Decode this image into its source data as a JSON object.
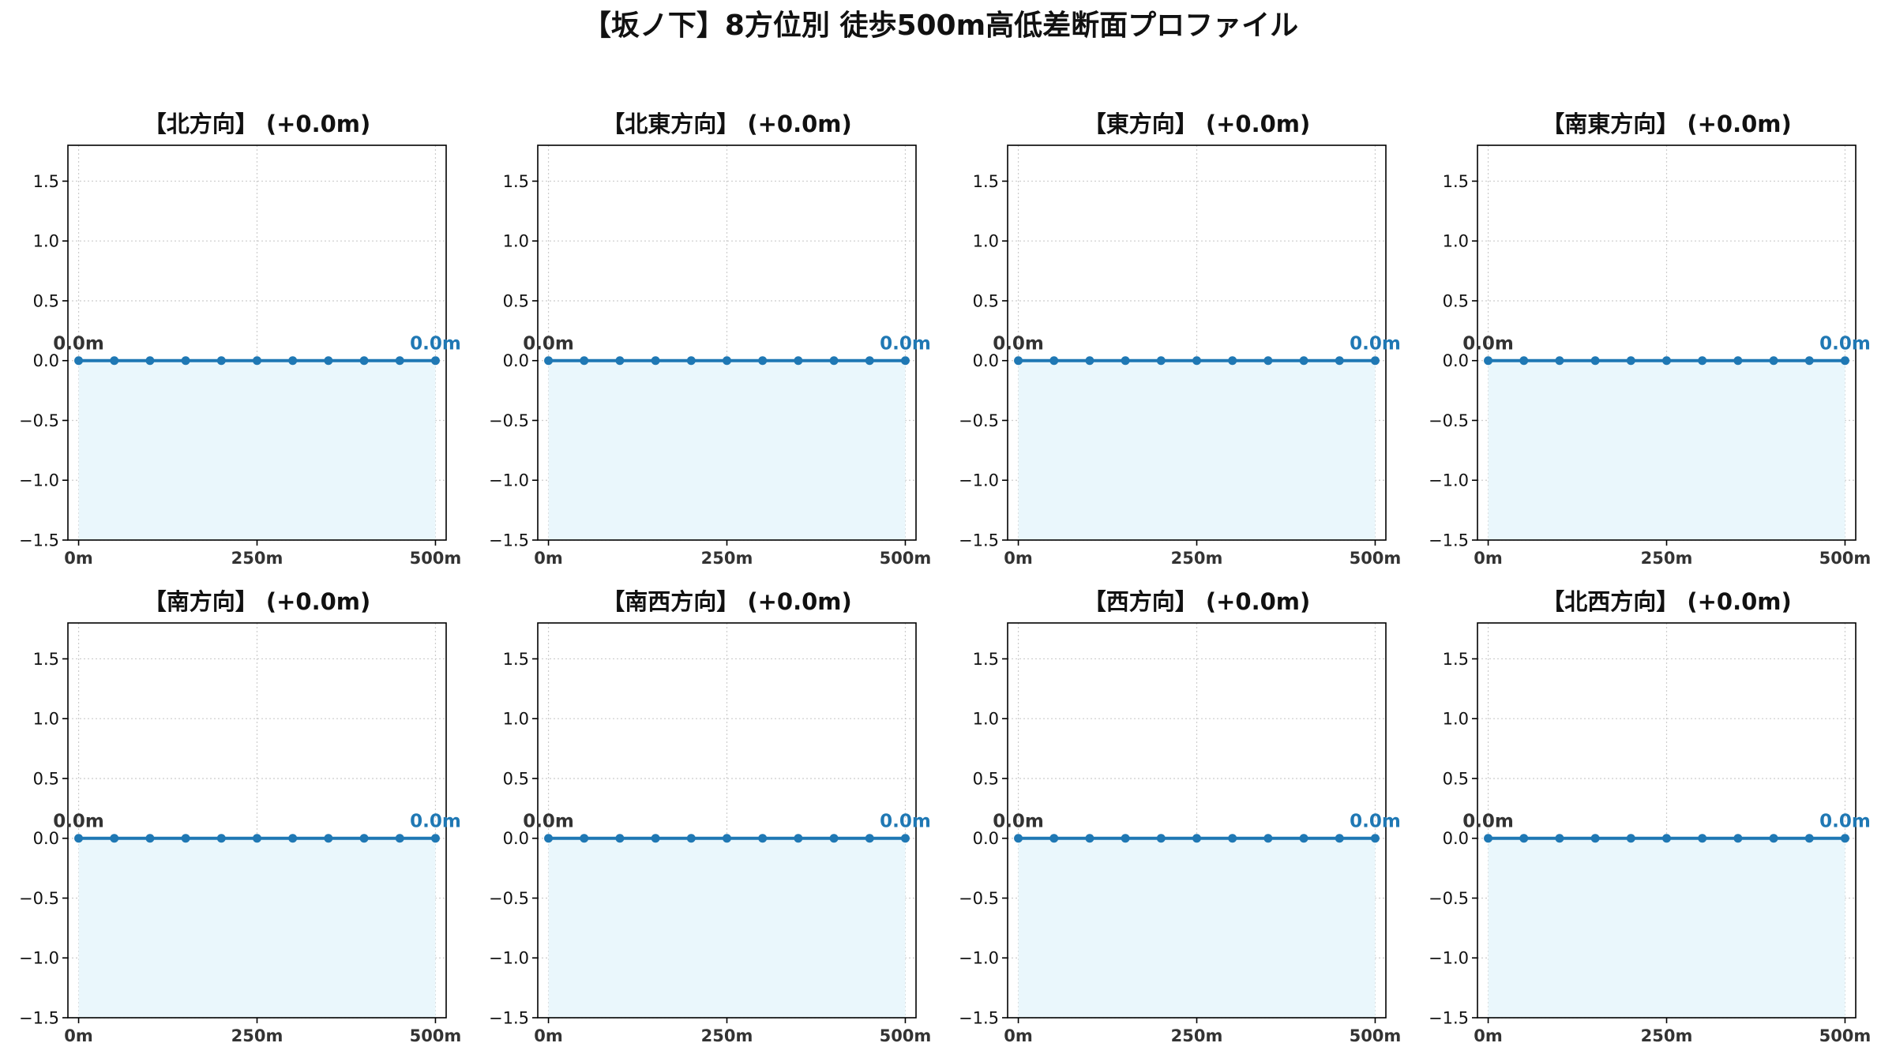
{
  "title": "【坂ノ下】8方位別 徒歩500m高低差断面プロファイル",
  "colors": {
    "line": "#1f78b4",
    "end_label": "#1f78b4",
    "fill": "#eaf7fc",
    "grid": "#cccccc",
    "frame": "#000000"
  },
  "chart_data": [
    {
      "type": "line",
      "title": "【北方向】 (+0.0m)",
      "x": [
        0,
        50,
        100,
        150,
        200,
        250,
        300,
        350,
        400,
        450,
        500
      ],
      "y": [
        0,
        0,
        0,
        0,
        0,
        0,
        0,
        0,
        0,
        0,
        0
      ],
      "ylim": [
        -1.5,
        1.8
      ],
      "xlim": [
        -15,
        515
      ],
      "yticks": [
        -1.5,
        -1.0,
        -0.5,
        0.0,
        0.5,
        1.0,
        1.5
      ],
      "ytick_labels": [
        "−1.5",
        "−1.0",
        "−0.5",
        "0.0",
        "0.5",
        "1.0",
        "1.5"
      ],
      "xticks": [
        0,
        250,
        500
      ],
      "xtick_labels": [
        "0m",
        "250m",
        "500m"
      ],
      "start_label": "0.0m",
      "end_label": "0.0m",
      "grid": true
    },
    {
      "type": "line",
      "title": "【北東方向】 (+0.0m)",
      "x": [
        0,
        50,
        100,
        150,
        200,
        250,
        300,
        350,
        400,
        450,
        500
      ],
      "y": [
        0,
        0,
        0,
        0,
        0,
        0,
        0,
        0,
        0,
        0,
        0
      ],
      "ylim": [
        -1.5,
        1.8
      ],
      "xlim": [
        -15,
        515
      ],
      "yticks": [
        -1.5,
        -1.0,
        -0.5,
        0.0,
        0.5,
        1.0,
        1.5
      ],
      "ytick_labels": [
        "−1.5",
        "−1.0",
        "−0.5",
        "0.0",
        "0.5",
        "1.0",
        "1.5"
      ],
      "xticks": [
        0,
        250,
        500
      ],
      "xtick_labels": [
        "0m",
        "250m",
        "500m"
      ],
      "start_label": "0.0m",
      "end_label": "0.0m",
      "grid": true
    },
    {
      "type": "line",
      "title": "【東方向】 (+0.0m)",
      "x": [
        0,
        50,
        100,
        150,
        200,
        250,
        300,
        350,
        400,
        450,
        500
      ],
      "y": [
        0,
        0,
        0,
        0,
        0,
        0,
        0,
        0,
        0,
        0,
        0
      ],
      "ylim": [
        -1.5,
        1.8
      ],
      "xlim": [
        -15,
        515
      ],
      "yticks": [
        -1.5,
        -1.0,
        -0.5,
        0.0,
        0.5,
        1.0,
        1.5
      ],
      "ytick_labels": [
        "−1.5",
        "−1.0",
        "−0.5",
        "0.0",
        "0.5",
        "1.0",
        "1.5"
      ],
      "xticks": [
        0,
        250,
        500
      ],
      "xtick_labels": [
        "0m",
        "250m",
        "500m"
      ],
      "start_label": "0.0m",
      "end_label": "0.0m",
      "grid": true
    },
    {
      "type": "line",
      "title": "【南東方向】 (+0.0m)",
      "x": [
        0,
        50,
        100,
        150,
        200,
        250,
        300,
        350,
        400,
        450,
        500
      ],
      "y": [
        0,
        0,
        0,
        0,
        0,
        0,
        0,
        0,
        0,
        0,
        0
      ],
      "ylim": [
        -1.5,
        1.8
      ],
      "xlim": [
        -15,
        515
      ],
      "yticks": [
        -1.5,
        -1.0,
        -0.5,
        0.0,
        0.5,
        1.0,
        1.5
      ],
      "ytick_labels": [
        "−1.5",
        "−1.0",
        "−0.5",
        "0.0",
        "0.5",
        "1.0",
        "1.5"
      ],
      "xticks": [
        0,
        250,
        500
      ],
      "xtick_labels": [
        "0m",
        "250m",
        "500m"
      ],
      "start_label": "0.0m",
      "end_label": "0.0m",
      "grid": true
    },
    {
      "type": "line",
      "title": "【南方向】 (+0.0m)",
      "x": [
        0,
        50,
        100,
        150,
        200,
        250,
        300,
        350,
        400,
        450,
        500
      ],
      "y": [
        0,
        0,
        0,
        0,
        0,
        0,
        0,
        0,
        0,
        0,
        0
      ],
      "ylim": [
        -1.5,
        1.8
      ],
      "xlim": [
        -15,
        515
      ],
      "yticks": [
        -1.5,
        -1.0,
        -0.5,
        0.0,
        0.5,
        1.0,
        1.5
      ],
      "ytick_labels": [
        "−1.5",
        "−1.0",
        "−0.5",
        "0.0",
        "0.5",
        "1.0",
        "1.5"
      ],
      "xticks": [
        0,
        250,
        500
      ],
      "xtick_labels": [
        "0m",
        "250m",
        "500m"
      ],
      "start_label": "0.0m",
      "end_label": "0.0m",
      "grid": true
    },
    {
      "type": "line",
      "title": "【南西方向】 (+0.0m)",
      "x": [
        0,
        50,
        100,
        150,
        200,
        250,
        300,
        350,
        400,
        450,
        500
      ],
      "y": [
        0,
        0,
        0,
        0,
        0,
        0,
        0,
        0,
        0,
        0,
        0
      ],
      "ylim": [
        -1.5,
        1.8
      ],
      "xlim": [
        -15,
        515
      ],
      "yticks": [
        -1.5,
        -1.0,
        -0.5,
        0.0,
        0.5,
        1.0,
        1.5
      ],
      "ytick_labels": [
        "−1.5",
        "−1.0",
        "−0.5",
        "0.0",
        "0.5",
        "1.0",
        "1.5"
      ],
      "xticks": [
        0,
        250,
        500
      ],
      "xtick_labels": [
        "0m",
        "250m",
        "500m"
      ],
      "start_label": "0.0m",
      "end_label": "0.0m",
      "grid": true
    },
    {
      "type": "line",
      "title": "【西方向】 (+0.0m)",
      "x": [
        0,
        50,
        100,
        150,
        200,
        250,
        300,
        350,
        400,
        450,
        500
      ],
      "y": [
        0,
        0,
        0,
        0,
        0,
        0,
        0,
        0,
        0,
        0,
        0
      ],
      "ylim": [
        -1.5,
        1.8
      ],
      "xlim": [
        -15,
        515
      ],
      "yticks": [
        -1.5,
        -1.0,
        -0.5,
        0.0,
        0.5,
        1.0,
        1.5
      ],
      "ytick_labels": [
        "−1.5",
        "−1.0",
        "−0.5",
        "0.0",
        "0.5",
        "1.0",
        "1.5"
      ],
      "xticks": [
        0,
        250,
        500
      ],
      "xtick_labels": [
        "0m",
        "250m",
        "500m"
      ],
      "start_label": "0.0m",
      "end_label": "0.0m",
      "grid": true
    },
    {
      "type": "line",
      "title": "【北西方向】 (+0.0m)",
      "x": [
        0,
        50,
        100,
        150,
        200,
        250,
        300,
        350,
        400,
        450,
        500
      ],
      "y": [
        0,
        0,
        0,
        0,
        0,
        0,
        0,
        0,
        0,
        0,
        0
      ],
      "ylim": [
        -1.5,
        1.8
      ],
      "xlim": [
        -15,
        515
      ],
      "yticks": [
        -1.5,
        -1.0,
        -0.5,
        0.0,
        0.5,
        1.0,
        1.5
      ],
      "ytick_labels": [
        "−1.5",
        "−1.0",
        "−0.5",
        "0.0",
        "0.5",
        "1.0",
        "1.5"
      ],
      "xticks": [
        0,
        250,
        500
      ],
      "xtick_labels": [
        "0m",
        "250m",
        "500m"
      ],
      "start_label": "0.0m",
      "end_label": "0.0m",
      "grid": true
    }
  ]
}
